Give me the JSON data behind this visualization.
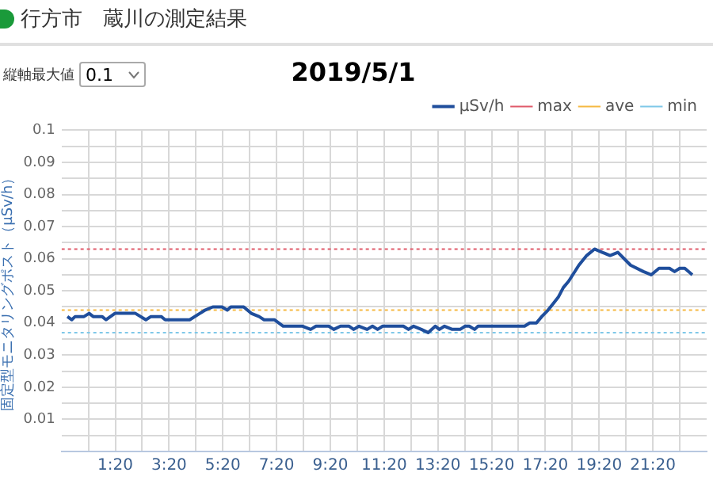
{
  "chart_data": {
    "type": "line",
    "title": "行方市　蔵川の測定結果",
    "subtitle": "2019/5/1",
    "ylabel": "固定型モニタリングポスト（μSv/h）",
    "annotations": [
      "縦軸最大値",
      "0.1"
    ],
    "xlim": [
      -0.667,
      23.333
    ],
    "xticks": [
      {
        "value": 0.333,
        "label": null
      },
      {
        "value": 1.333,
        "label": "1:20"
      },
      {
        "value": 2.333,
        "label": null
      },
      {
        "value": 3.333,
        "label": "3:20"
      },
      {
        "value": 4.333,
        "label": null
      },
      {
        "value": 5.333,
        "label": "5:20"
      },
      {
        "value": 6.333,
        "label": null
      },
      {
        "value": 7.333,
        "label": "7:20"
      },
      {
        "value": 8.333,
        "label": null
      },
      {
        "value": 9.333,
        "label": "9:20"
      },
      {
        "value": 10.333,
        "label": null
      },
      {
        "value": 11.333,
        "label": "11:20"
      },
      {
        "value": 12.333,
        "label": null
      },
      {
        "value": 13.333,
        "label": "13:20"
      },
      {
        "value": 14.333,
        "label": null
      },
      {
        "value": 15.333,
        "label": "15:20"
      },
      {
        "value": 16.333,
        "label": null
      },
      {
        "value": 17.333,
        "label": "17:20"
      },
      {
        "value": 18.333,
        "label": null
      },
      {
        "value": 19.333,
        "label": "19:20"
      },
      {
        "value": 20.333,
        "label": null
      },
      {
        "value": 21.333,
        "label": "21:20"
      },
      {
        "value": 22.333,
        "label": null
      }
    ],
    "ylim": [
      0,
      0.1
    ],
    "yticks": [
      {
        "value": 0,
        "label": null
      },
      {
        "value": 0.005,
        "label": null
      },
      0.01,
      {
        "value": 0.015,
        "label": null
      },
      0.02,
      {
        "value": 0.025,
        "label": null
      },
      0.03,
      {
        "value": 0.035,
        "label": null
      },
      0.04,
      {
        "value": 0.045,
        "label": null
      },
      0.05,
      {
        "value": 0.055,
        "label": null
      },
      0.06,
      {
        "value": 0.065,
        "label": null
      },
      0.07,
      {
        "value": 0.075,
        "label": null
      },
      0.08,
      {
        "value": 0.085,
        "label": null
      },
      0.09,
      {
        "value": 0.095,
        "label": null
      },
      0.1
    ],
    "grid": true,
    "legend": "top right",
    "marker": "none",
    "series": [
      {
        "name": "μSv/h",
        "color": "#1f4e9c",
        "line_style": "solid",
        "x": [
          -0.45,
          -0.29,
          -0.16,
          0.17,
          0.36,
          0.51,
          0.84,
          0.99,
          1.32,
          2.08,
          2.47,
          2.66,
          3.04,
          3.19,
          4.1,
          4.48,
          4.67,
          4.96,
          5.3,
          5.5,
          5.63,
          6.11,
          6.39,
          6.68,
          6.87,
          7.25,
          7.58,
          8.3,
          8.6,
          8.8,
          9.27,
          9.46,
          9.71,
          10.03,
          10.2,
          10.4,
          10.7,
          10.9,
          11.09,
          11.28,
          12.05,
          12.24,
          12.43,
          12.72,
          12.97,
          13.24,
          13.39,
          13.58,
          13.87,
          14.16,
          14.35,
          14.5,
          14.7,
          14.83,
          16.56,
          16.75,
          17.0,
          17.2,
          17.43,
          17.62,
          17.81,
          18.0,
          18.2,
          18.58,
          18.87,
          19.16,
          19.45,
          19.74,
          20.03,
          20.5,
          20.98,
          21.27,
          21.56,
          21.95,
          22.14,
          22.33,
          22.52,
          22.8
        ],
        "values": [
          0.042,
          0.041,
          0.042,
          0.042,
          0.043,
          0.042,
          0.042,
          0.041,
          0.043,
          0.043,
          0.041,
          0.042,
          0.042,
          0.041,
          0.041,
          0.043,
          0.044,
          0.045,
          0.045,
          0.044,
          0.045,
          0.045,
          0.043,
          0.042,
          0.041,
          0.041,
          0.039,
          0.039,
          0.038,
          0.039,
          0.039,
          0.038,
          0.039,
          0.039,
          0.038,
          0.039,
          0.038,
          0.039,
          0.038,
          0.039,
          0.039,
          0.038,
          0.039,
          0.038,
          0.037,
          0.039,
          0.038,
          0.039,
          0.038,
          0.038,
          0.039,
          0.039,
          0.038,
          0.039,
          0.039,
          0.04,
          0.04,
          0.042,
          0.044,
          0.046,
          0.048,
          0.051,
          0.053,
          0.058,
          0.061,
          0.063,
          0.062,
          0.061,
          0.062,
          0.058,
          0.056,
          0.055,
          0.057,
          0.057,
          0.056,
          0.057,
          0.057,
          0.055
        ]
      },
      {
        "name": "max",
        "color": "#e05a6a",
        "line_style": "dotted",
        "x": [
          -0.667,
          23.333
        ],
        "values": [
          0.063,
          0.063
        ]
      },
      {
        "name": "ave",
        "color": "#f5b942",
        "line_style": "dotted",
        "x": [
          -0.667,
          23.333
        ],
        "values": [
          0.044,
          0.044
        ]
      },
      {
        "name": "min",
        "color": "#7fc8e8",
        "line_style": "dotted",
        "x": [
          -0.667,
          23.333
        ],
        "values": [
          0.037,
          0.037
        ]
      }
    ]
  }
}
